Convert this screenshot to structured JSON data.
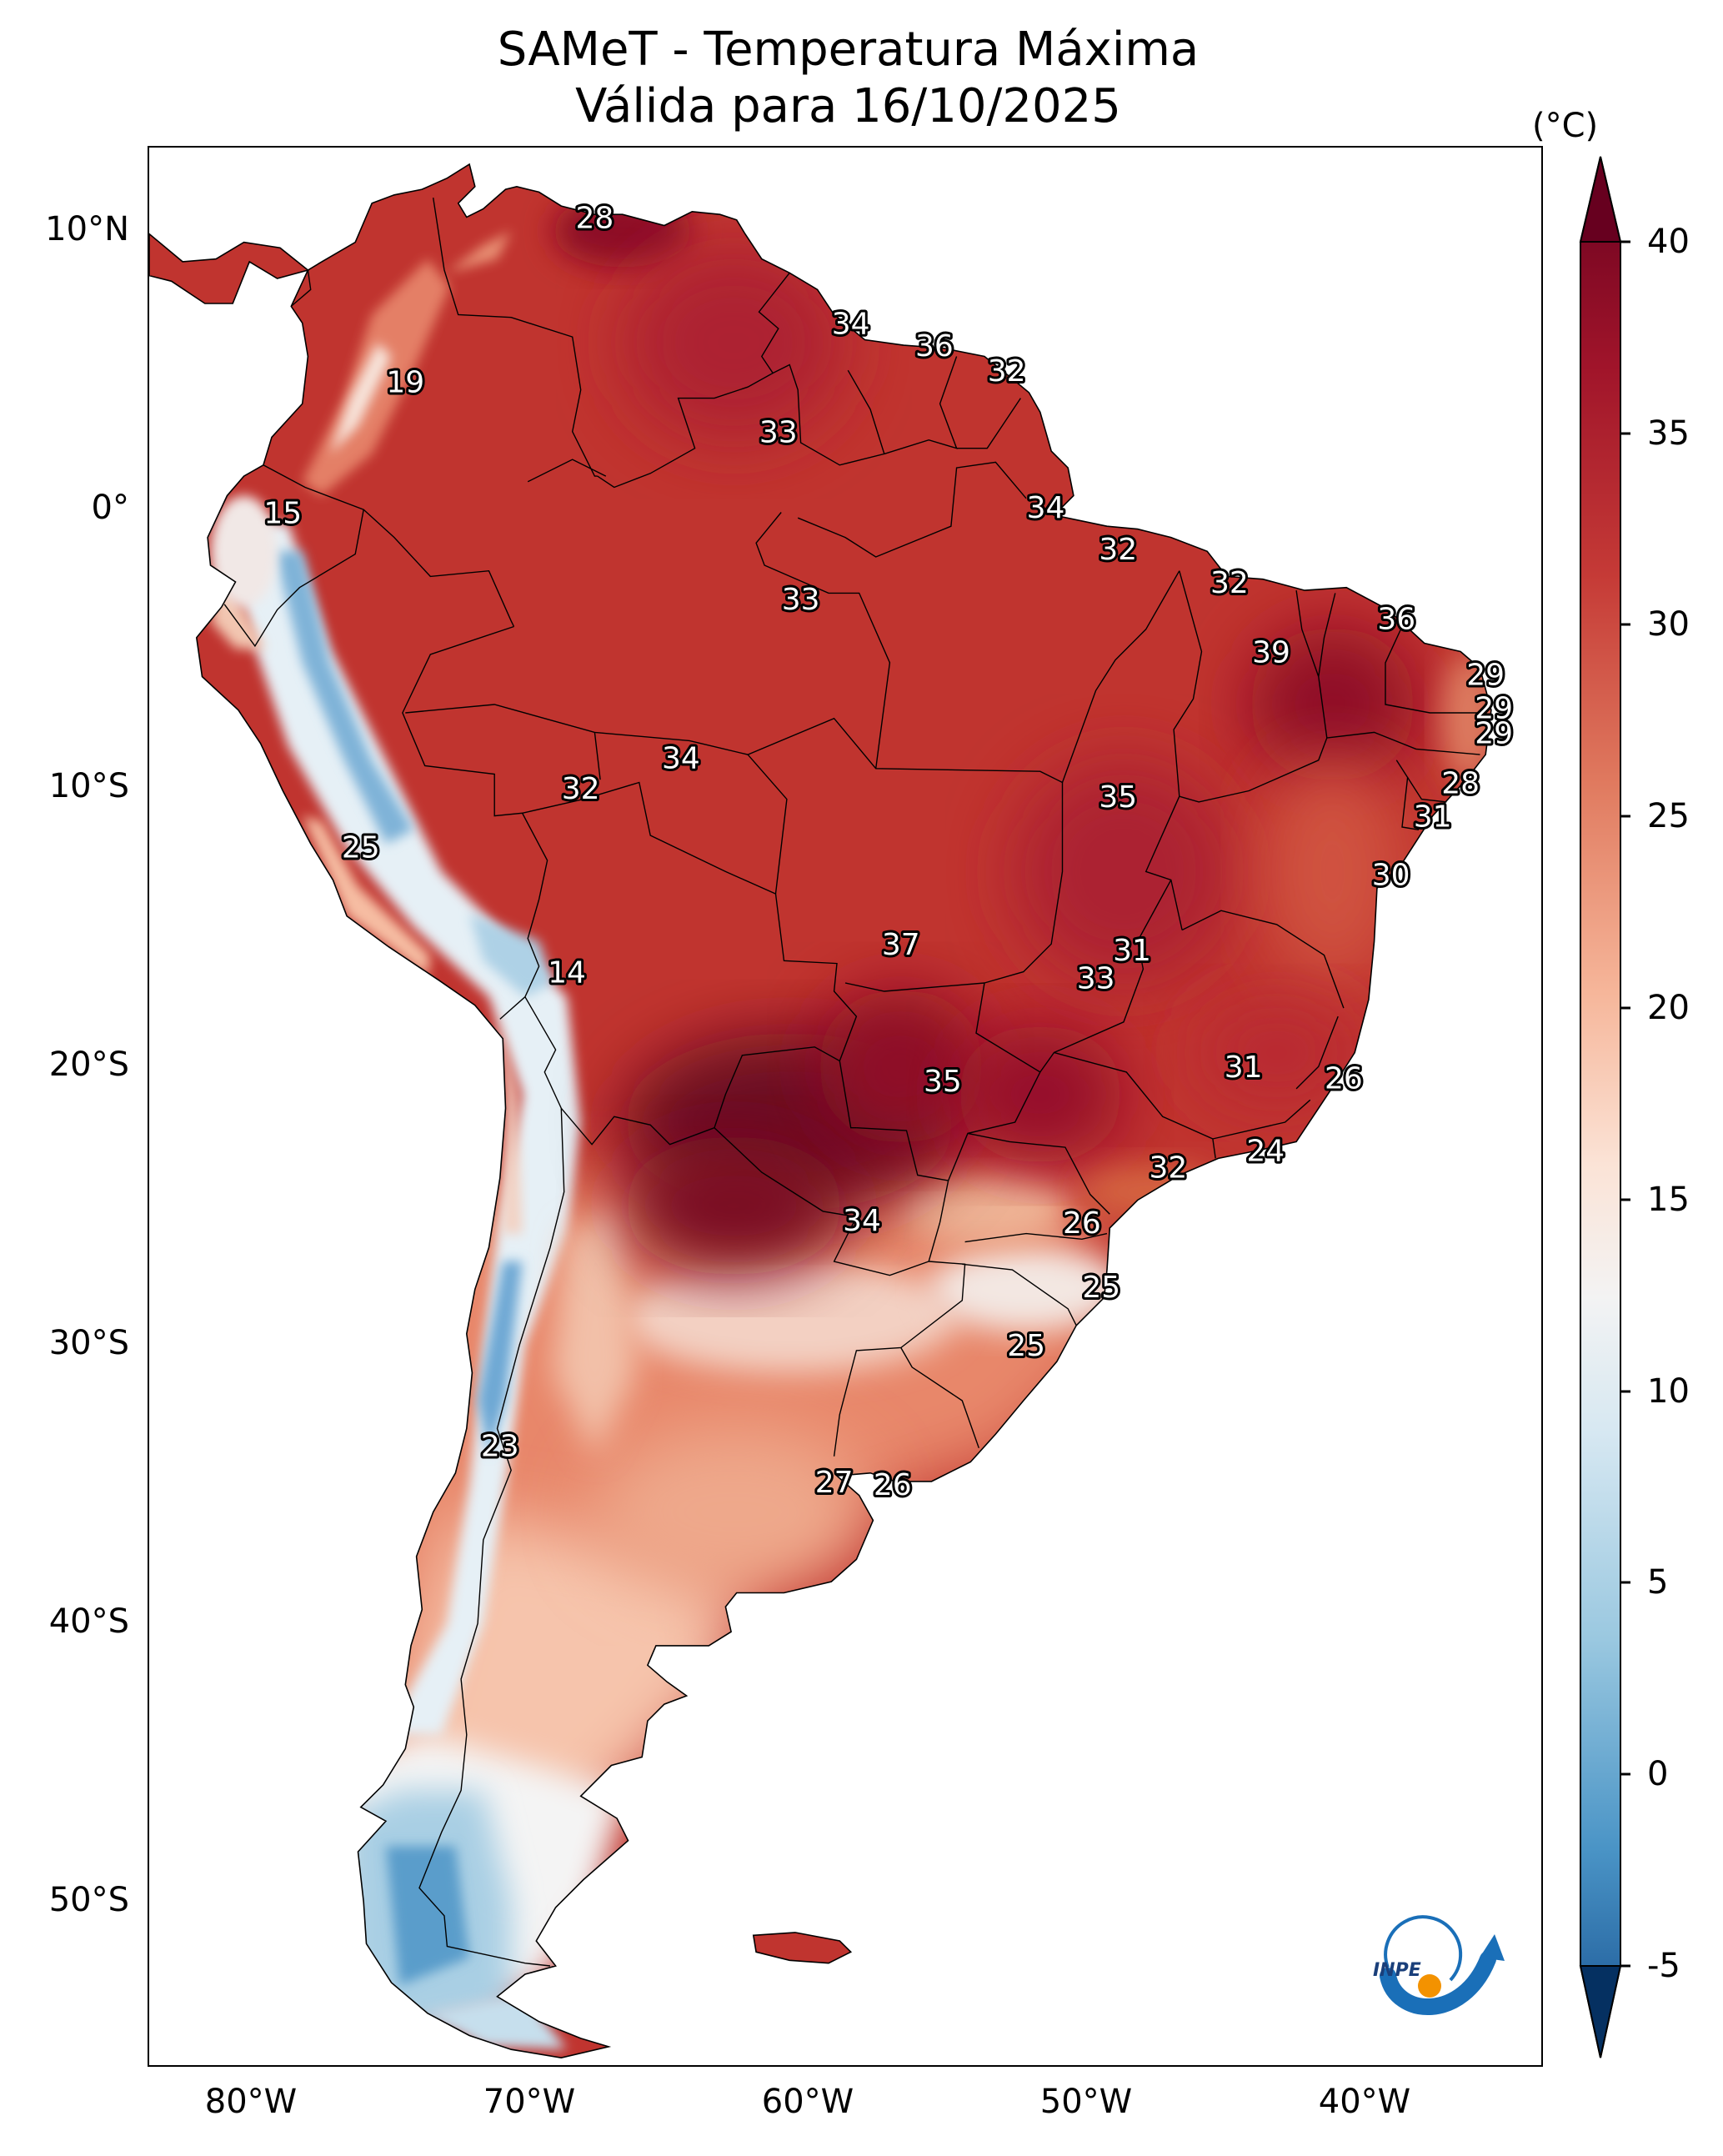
{
  "title": {
    "line1": "SAMeT - Temperatura Máxima",
    "line2": "Válida para 16/10/2025"
  },
  "axes": {
    "lat_labels": [
      "10°N",
      "0°",
      "10°S",
      "20°S",
      "30°S",
      "40°S",
      "50°S"
    ],
    "lon_labels": [
      "80°W",
      "70°W",
      "60°W",
      "50°W",
      "40°W"
    ]
  },
  "colorbar": {
    "unit": "(°C)",
    "ticks": [
      "40",
      "35",
      "30",
      "25",
      "20",
      "15",
      "10",
      "5",
      "0",
      "-5"
    ],
    "min": -5,
    "max": 40,
    "colors": {
      "max": "#67001f",
      "high": "#b2182b",
      "warm": "#d6604d",
      "mild": "#f4a582",
      "pale": "#fddbc7",
      "neutral": "#f7f7f7",
      "cool": "#d1e5f0",
      "cold": "#92c5de",
      "colder": "#4393c3",
      "coldest": "#2166ac",
      "min": "#053061"
    }
  },
  "temperature_labels": [
    {
      "value": "28",
      "lon": -67,
      "lat": 10.5
    },
    {
      "value": "34",
      "lon": -57.8,
      "lat": 6.7
    },
    {
      "value": "36",
      "lon": -54.8,
      "lat": 5.9
    },
    {
      "value": "32",
      "lon": -52.2,
      "lat": 5.0
    },
    {
      "value": "19",
      "lon": -73.8,
      "lat": 4.6
    },
    {
      "value": "33",
      "lon": -60.4,
      "lat": 2.8
    },
    {
      "value": "34",
      "lon": -50.8,
      "lat": 0.1
    },
    {
      "value": "15",
      "lon": -78.2,
      "lat": -0.1
    },
    {
      "value": "32",
      "lon": -48.2,
      "lat": -1.4
    },
    {
      "value": "32",
      "lon": -44.2,
      "lat": -2.6
    },
    {
      "value": "33",
      "lon": -59.6,
      "lat": -3.2
    },
    {
      "value": "36",
      "lon": -38.2,
      "lat": -3.9
    },
    {
      "value": "39",
      "lon": -42.7,
      "lat": -5.1
    },
    {
      "value": "29",
      "lon": -35.0,
      "lat": -5.9
    },
    {
      "value": "29",
      "lon": -34.7,
      "lat": -7.1
    },
    {
      "value": "29",
      "lon": -34.7,
      "lat": -8.0
    },
    {
      "value": "34",
      "lon": -63.9,
      "lat": -8.9
    },
    {
      "value": "32",
      "lon": -67.5,
      "lat": -10.0
    },
    {
      "value": "28",
      "lon": -35.9,
      "lat": -9.8
    },
    {
      "value": "35",
      "lon": -48.2,
      "lat": -10.3
    },
    {
      "value": "31",
      "lon": -36.9,
      "lat": -11.0
    },
    {
      "value": "25",
      "lon": -75.4,
      "lat": -12.1
    },
    {
      "value": "30",
      "lon": -38.4,
      "lat": -13.1
    },
    {
      "value": "37",
      "lon": -56.0,
      "lat": -15.6
    },
    {
      "value": "31",
      "lon": -47.7,
      "lat": -15.8
    },
    {
      "value": "33",
      "lon": -49.0,
      "lat": -16.8
    },
    {
      "value": "14",
      "lon": -68.0,
      "lat": -16.6
    },
    {
      "value": "31",
      "lon": -43.7,
      "lat": -20.0
    },
    {
      "value": "26",
      "lon": -40.1,
      "lat": -20.4
    },
    {
      "value": "35",
      "lon": -54.5,
      "lat": -20.5
    },
    {
      "value": "24",
      "lon": -42.9,
      "lat": -23.0
    },
    {
      "value": "32",
      "lon": -46.4,
      "lat": -23.6
    },
    {
      "value": "26",
      "lon": -49.5,
      "lat": -25.6
    },
    {
      "value": "34",
      "lon": -57.4,
      "lat": -25.5
    },
    {
      "value": "25",
      "lon": -48.8,
      "lat": -27.9
    },
    {
      "value": "25",
      "lon": -51.5,
      "lat": -30.0
    },
    {
      "value": "23",
      "lon": -70.4,
      "lat": -33.6
    },
    {
      "value": "27",
      "lon": -58.4,
      "lat": -34.9
    },
    {
      "value": "26",
      "lon": -56.3,
      "lat": -35.0
    }
  ],
  "logo": {
    "text": "INPE"
  }
}
